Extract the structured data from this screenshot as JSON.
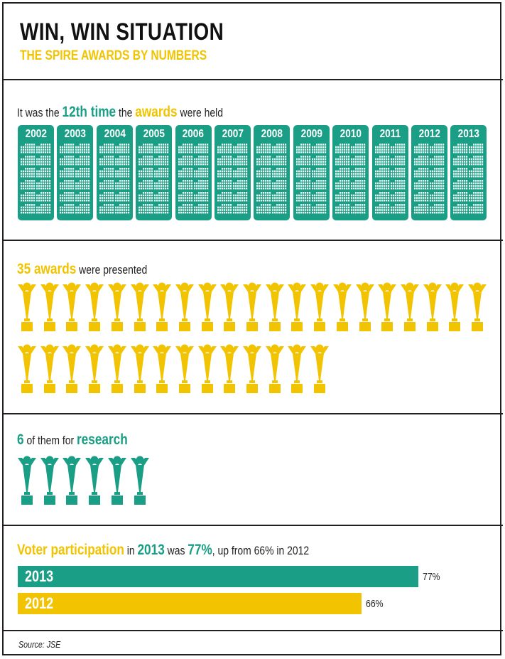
{
  "header": {
    "title": "WIN, WIN SITUATION",
    "subtitle": "THE SPIRE AWARDS BY NUMBERS"
  },
  "times": {
    "p1": "It was the ",
    "h1": "12th time",
    "p2": " the ",
    "h2": "awards",
    "p3": " were held",
    "years": [
      "2002",
      "2003",
      "2004",
      "2005",
      "2006",
      "2007",
      "2008",
      "2009",
      "2010",
      "2011",
      "2012",
      "2013"
    ]
  },
  "awards": {
    "h1": "35 awards",
    "p1": " were presented",
    "count": 35
  },
  "research": {
    "h1": "6",
    "p1": " of them for ",
    "h2": "research",
    "count": 6
  },
  "participation": {
    "h1": "Voter participation",
    "p1": " in ",
    "h2": "2013",
    "p2": " was ",
    "h3": "77%",
    "p3": ", up from 66% in 2012"
  },
  "chart_data": {
    "type": "bar",
    "orientation": "horizontal",
    "categories": [
      "2013",
      "2012"
    ],
    "values": [
      77,
      66
    ],
    "value_labels": [
      "77%",
      "66%"
    ],
    "colors": [
      "#1a9e86",
      "#f2c300"
    ],
    "xlim": [
      0,
      100
    ]
  },
  "source": "Source: JSE",
  "colors": {
    "green": "#1a9e86",
    "yellow": "#f2c300",
    "ink": "#231f20"
  }
}
